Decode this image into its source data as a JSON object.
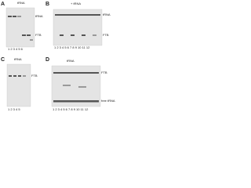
{
  "panels": [
    {
      "letter": "A",
      "header": "tRNA",
      "labels": [
        "tRNA",
        "FTB"
      ],
      "lanes": "1 2 3 4 5 6"
    },
    {
      "letter": "B",
      "header": "+ tRNA",
      "labels": [
        "tRNA",
        "FTB"
      ],
      "lanes": "1 2 3 4 5 6 7 8 9 10 11 12"
    },
    {
      "letter": "C",
      "header": "tRNA",
      "labels": [
        "FTB"
      ],
      "lanes": "1 2 3 4 5"
    },
    {
      "letter": "D",
      "header": "tRNA",
      "labels": [
        "FTB",
        "free tRNA"
      ],
      "lanes": "1 2 3 4 5 6 7 8 9 10 11 12"
    }
  ]
}
